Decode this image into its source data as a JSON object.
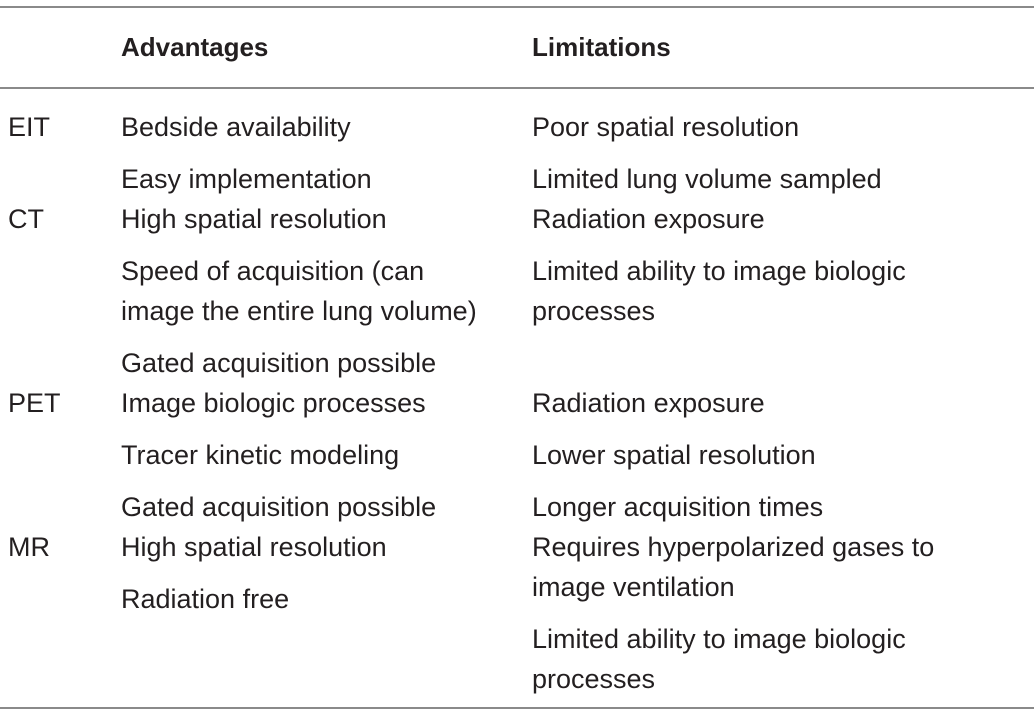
{
  "header": {
    "modality": "",
    "advantages": "Advantages",
    "limitations": "Limitations"
  },
  "rows": [
    {
      "modality": "EIT",
      "advantages": [
        "Bedside availability",
        "Easy implementation"
      ],
      "limitations": [
        "Poor spatial resolution",
        "Limited lung volume sampled"
      ]
    },
    {
      "modality": "CT",
      "advantages": [
        "High spatial resolution",
        "Speed of acquisition (can",
        "image the entire lung volume)",
        "Gated acquisition possible"
      ],
      "limitations": [
        "Radiation exposure",
        "Limited ability to image biologic",
        "processes"
      ]
    },
    {
      "modality": "PET",
      "advantages": [
        "Image biologic processes",
        "Tracer kinetic modeling",
        "Gated acquisition possible"
      ],
      "limitations": [
        "Radiation exposure",
        "Lower spatial resolution",
        "Longer acquisition times"
      ]
    },
    {
      "modality": "MR",
      "advantages": [
        "High spatial resolution",
        "Radiation free"
      ],
      "limitations": [
        "Requires hyperpolarized gases to",
        "image ventilation",
        "Limited ability to image biologic",
        "processes"
      ]
    }
  ]
}
